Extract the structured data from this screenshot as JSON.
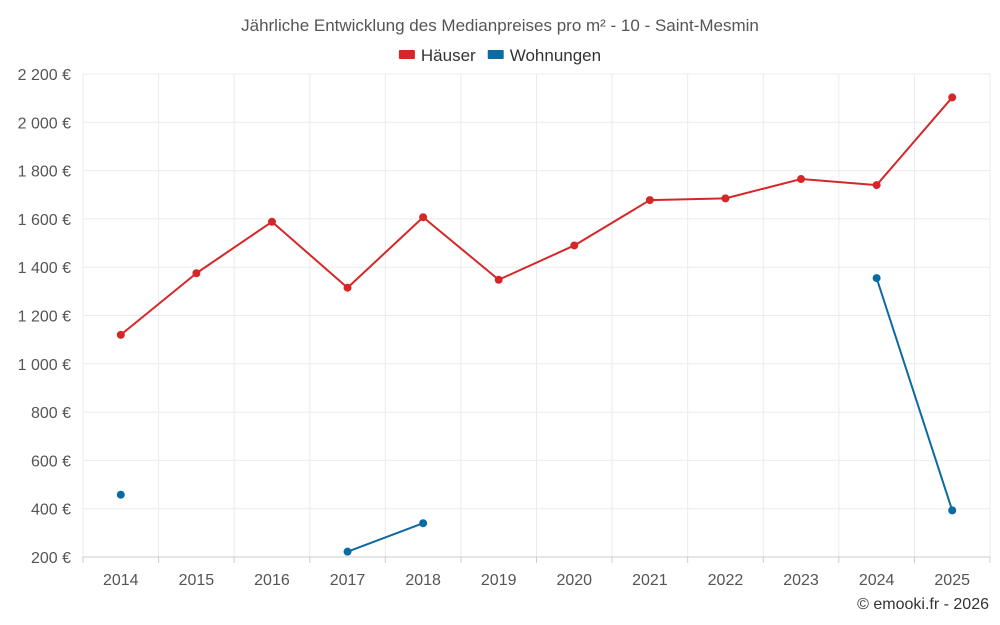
{
  "chart_data": {
    "type": "line",
    "title": "Jährliche Entwicklung des Medianpreises pro m² - 10 - Saint-Mesmin",
    "categories": [
      "2014",
      "2015",
      "2016",
      "2017",
      "2018",
      "2019",
      "2020",
      "2021",
      "2022",
      "2023",
      "2024",
      "2025"
    ],
    "y_ticks": [
      200,
      400,
      600,
      800,
      1000,
      1200,
      1400,
      1600,
      1800,
      2000,
      2200
    ],
    "y_tick_labels": [
      "200 €",
      "400 €",
      "600 €",
      "800 €",
      "1 000 €",
      "1 200 €",
      "1 400 €",
      "1 600 €",
      "1 800 €",
      "2 000 €",
      "2 200 €"
    ],
    "ylim": [
      200,
      2200
    ],
    "grid": true,
    "legend_position": "top-center",
    "series": [
      {
        "name": "Häuser",
        "color": "#d62728",
        "values": [
          1120,
          1375,
          1588,
          1315,
          1607,
          1348,
          1490,
          1678,
          1685,
          1765,
          1740,
          2103
        ]
      },
      {
        "name": "Wohnungen",
        "color": "#0b6aa2",
        "values": [
          458,
          null,
          null,
          222,
          340,
          null,
          null,
          null,
          null,
          null,
          1355,
          393
        ]
      }
    ]
  },
  "copyright": "© emooki.fr - 2026"
}
